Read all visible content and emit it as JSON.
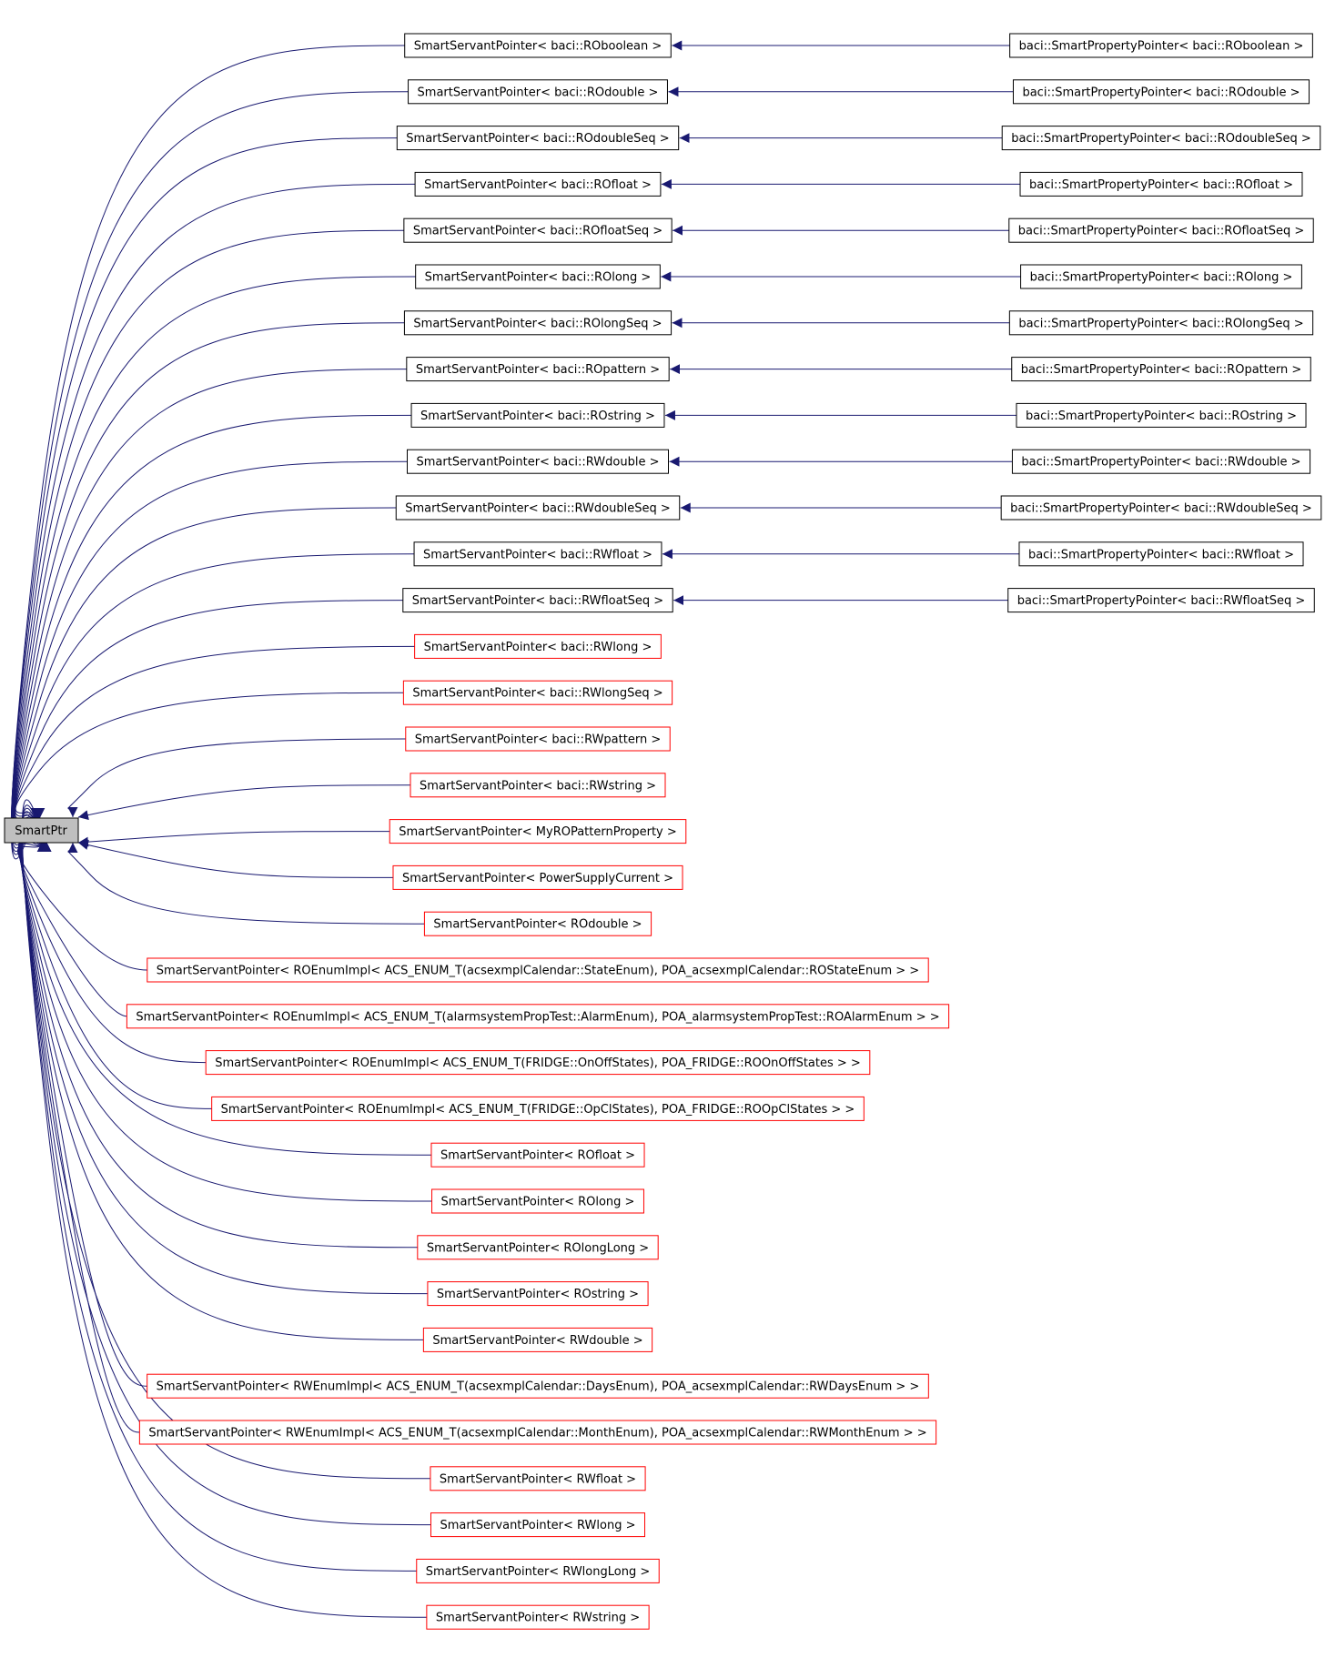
{
  "root": {
    "label": "SmartPtr",
    "fill": "#bfbfbf"
  },
  "colors": {
    "edge": "#191970",
    "documented": "#000000",
    "undocumented": "#ff0000"
  },
  "nodes": [
    {
      "label": "SmartServantPointer< baci::ROboolean >",
      "parent_of": "baci::SmartPropertyPointer< baci::ROboolean >",
      "border": "documented"
    },
    {
      "label": "SmartServantPointer< baci::ROdouble >",
      "parent_of": "baci::SmartPropertyPointer< baci::ROdouble >",
      "border": "documented"
    },
    {
      "label": "SmartServantPointer< baci::ROdoubleSeq >",
      "parent_of": "baci::SmartPropertyPointer< baci::ROdoubleSeq >",
      "border": "documented"
    },
    {
      "label": "SmartServantPointer< baci::ROfloat >",
      "parent_of": "baci::SmartPropertyPointer< baci::ROfloat >",
      "border": "documented"
    },
    {
      "label": "SmartServantPointer< baci::ROfloatSeq >",
      "parent_of": "baci::SmartPropertyPointer< baci::ROfloatSeq >",
      "border": "documented"
    },
    {
      "label": "SmartServantPointer< baci::ROlong >",
      "parent_of": "baci::SmartPropertyPointer< baci::ROlong >",
      "border": "documented"
    },
    {
      "label": "SmartServantPointer< baci::ROlongSeq >",
      "parent_of": "baci::SmartPropertyPointer< baci::ROlongSeq >",
      "border": "documented"
    },
    {
      "label": "SmartServantPointer< baci::ROpattern >",
      "parent_of": "baci::SmartPropertyPointer< baci::ROpattern >",
      "border": "documented"
    },
    {
      "label": "SmartServantPointer< baci::ROstring >",
      "parent_of": "baci::SmartPropertyPointer< baci::ROstring >",
      "border": "documented"
    },
    {
      "label": "SmartServantPointer< baci::RWdouble >",
      "parent_of": "baci::SmartPropertyPointer< baci::RWdouble >",
      "border": "documented"
    },
    {
      "label": "SmartServantPointer< baci::RWdoubleSeq >",
      "parent_of": "baci::SmartPropertyPointer< baci::RWdoubleSeq >",
      "border": "documented"
    },
    {
      "label": "SmartServantPointer< baci::RWfloat >",
      "parent_of": "baci::SmartPropertyPointer< baci::RWfloat >",
      "border": "documented"
    },
    {
      "label": "SmartServantPointer< baci::RWfloatSeq >",
      "parent_of": "baci::SmartPropertyPointer< baci::RWfloatSeq >",
      "border": "documented"
    },
    {
      "label": "SmartServantPointer< baci::RWlong >",
      "border": "undocumented"
    },
    {
      "label": "SmartServantPointer< baci::RWlongSeq >",
      "border": "undocumented"
    },
    {
      "label": "SmartServantPointer< baci::RWpattern >",
      "border": "undocumented"
    },
    {
      "label": "SmartServantPointer< baci::RWstring >",
      "border": "undocumented"
    },
    {
      "label": "SmartServantPointer< MyROPatternProperty >",
      "border": "undocumented"
    },
    {
      "label": "SmartServantPointer< PowerSupplyCurrent >",
      "border": "undocumented"
    },
    {
      "label": "SmartServantPointer< ROdouble >",
      "border": "undocumented"
    },
    {
      "label": "SmartServantPointer< ROEnumImpl< ACS_ENUM_T(acsexmplCalendar::StateEnum), POA_acsexmplCalendar::ROStateEnum > >",
      "border": "undocumented"
    },
    {
      "label": "SmartServantPointer< ROEnumImpl< ACS_ENUM_T(alarmsystemPropTest::AlarmEnum), POA_alarmsystemPropTest::ROAlarmEnum > >",
      "border": "undocumented"
    },
    {
      "label": "SmartServantPointer< ROEnumImpl< ACS_ENUM_T(FRIDGE::OnOffStates), POA_FRIDGE::ROOnOffStates > >",
      "border": "undocumented"
    },
    {
      "label": "SmartServantPointer< ROEnumImpl< ACS_ENUM_T(FRIDGE::OpClStates), POA_FRIDGE::ROOpClStates > >",
      "border": "undocumented"
    },
    {
      "label": "SmartServantPointer< ROfloat >",
      "border": "undocumented"
    },
    {
      "label": "SmartServantPointer< ROlong >",
      "border": "undocumented"
    },
    {
      "label": "SmartServantPointer< ROlongLong >",
      "border": "undocumented"
    },
    {
      "label": "SmartServantPointer< ROstring >",
      "border": "undocumented"
    },
    {
      "label": "SmartServantPointer< RWdouble >",
      "border": "undocumented"
    },
    {
      "label": "SmartServantPointer< RWEnumImpl< ACS_ENUM_T(acsexmplCalendar::DaysEnum), POA_acsexmplCalendar::RWDaysEnum > >",
      "border": "undocumented"
    },
    {
      "label": "SmartServantPointer< RWEnumImpl< ACS_ENUM_T(acsexmplCalendar::MonthEnum), POA_acsexmplCalendar::RWMonthEnum > >",
      "border": "undocumented"
    },
    {
      "label": "SmartServantPointer< RWfloat >",
      "border": "undocumented"
    },
    {
      "label": "SmartServantPointer< RWlong >",
      "border": "undocumented"
    },
    {
      "label": "SmartServantPointer< RWlongLong >",
      "border": "undocumented"
    },
    {
      "label": "SmartServantPointer< RWstring >",
      "border": "undocumented"
    }
  ]
}
